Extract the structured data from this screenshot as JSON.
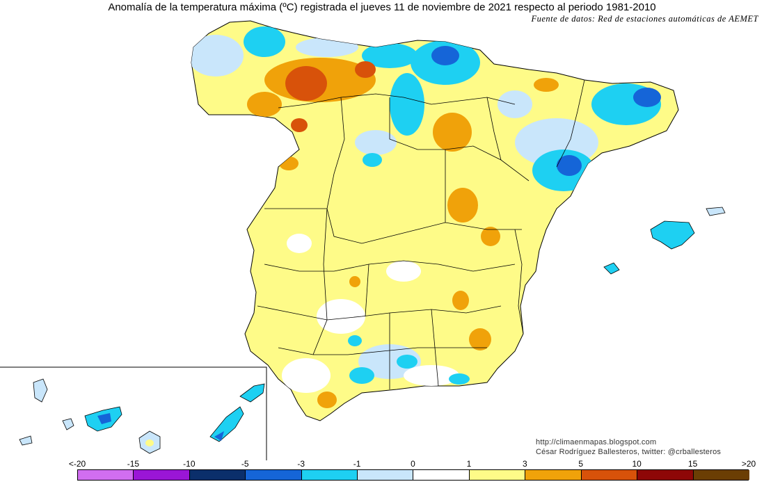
{
  "title": "Anomalía de la temperatura máxima (ºC) registrada el jueves 11 de noviembre de 2021 respecto al periodo 1981-2010",
  "source": "Fuente de datos: Red de estaciones automáticas de AEMET",
  "credit": {
    "url": "http://climaenmapas.blogspot.com",
    "author": "César Rodríguez Ballesteros, twitter: @crballesteros"
  },
  "legend": {
    "ticks": [
      "<-20",
      "-15",
      "-10",
      "-5",
      "-3",
      "-1",
      "0",
      "1",
      "3",
      "5",
      "10",
      "15",
      ">20"
    ],
    "colors": [
      "#d16ef0",
      "#9a16d6",
      "#0b2f6b",
      "#1565d8",
      "#1ed0f2",
      "#c9e6fb",
      "#ffffff",
      "#fefb88",
      "#f0a20a",
      "#d8520a",
      "#8e0707",
      "#6b3e04"
    ]
  }
}
